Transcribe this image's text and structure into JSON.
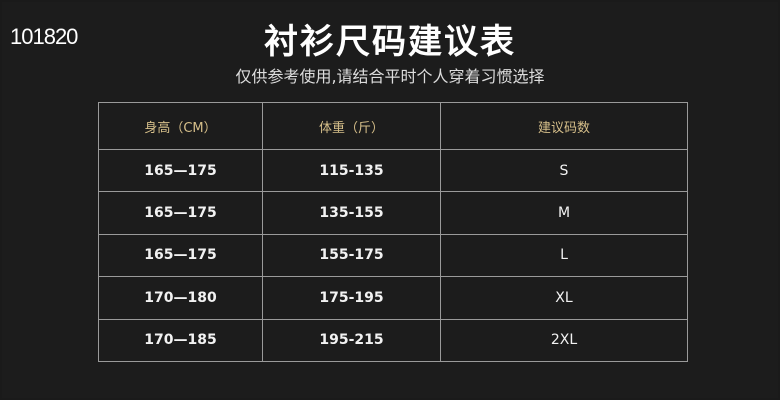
{
  "watermark": "101820",
  "title": "衬衫尺码建议表",
  "subtitle": "仅供参考使用,请结合平时个人穿着习惯选择",
  "table": {
    "headers": [
      "身高（CM）",
      "体重（斤）",
      "建议码数"
    ],
    "rows": [
      [
        "165—175",
        "115-135",
        "S"
      ],
      [
        "165—175",
        "135-155",
        "M"
      ],
      [
        "165—175",
        "155-175",
        "L"
      ],
      [
        "170—180",
        "175-195",
        "XL"
      ],
      [
        "170—185",
        "195-215",
        "2XL"
      ]
    ]
  },
  "colors": {
    "background": "#1c1c1c",
    "header_text": "#d6bf8a",
    "border": "#9a9a9a"
  }
}
